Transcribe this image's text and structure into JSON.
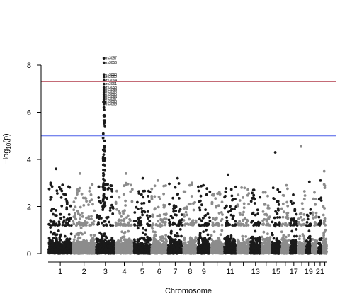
{
  "chart_data": {
    "type": "scatter",
    "title": "",
    "xlabel": "Chromosome",
    "ylabel": "-log10(p)",
    "ylim": [
      0,
      8.4
    ],
    "y_ticks": [
      0,
      2,
      4,
      6,
      8
    ],
    "x_tick_labels": [
      "1",
      "2",
      "3",
      "4",
      "5",
      "6",
      "7",
      "8",
      "9",
      "11",
      "13",
      "15",
      "17",
      "19",
      "21"
    ],
    "chromosomes": [
      "1",
      "2",
      "3",
      "4",
      "5",
      "6",
      "7",
      "8",
      "9",
      "10",
      "11",
      "12",
      "13",
      "14",
      "15",
      "16",
      "17",
      "18",
      "19",
      "20",
      "21",
      "22"
    ],
    "genome_wide_line": 7.3,
    "suggestive_line": 5.0,
    "genome_wide_color": "#b03a48",
    "suggestive_color": "#4a5ee8",
    "point_colors": [
      "#1a1a1a",
      "#8c8c8c"
    ],
    "peak_labels": [
      {
        "chr": "3",
        "label": "rs3057",
        "p": 8.3
      },
      {
        "chr": "3",
        "label": "rs3056",
        "p": 8.1
      },
      {
        "chr": "3",
        "label": "rs3060",
        "p": 7.6
      },
      {
        "chr": "3",
        "label": "rs3062",
        "p": 7.5
      },
      {
        "chr": "3",
        "label": "rs3064",
        "p": 7.35
      },
      {
        "chr": "3",
        "label": "rs3061",
        "p": 7.2
      },
      {
        "chr": "3",
        "label": "rs3058",
        "p": 7.05
      },
      {
        "chr": "3",
        "label": "rs3059",
        "p": 6.95
      },
      {
        "chr": "3",
        "label": "rs3063",
        "p": 6.85
      },
      {
        "chr": "3",
        "label": "rs3065",
        "p": 6.75
      },
      {
        "chr": "3",
        "label": "rs3066",
        "p": 6.65
      },
      {
        "chr": "3",
        "label": "rs3067",
        "p": 6.55
      },
      {
        "chr": "3",
        "label": "rs3068",
        "p": 6.45
      },
      {
        "chr": "3",
        "label": "rs3069",
        "p": 6.35
      }
    ],
    "chromosome_max": [
      3.6,
      3.4,
      8.3,
      3.4,
      3.2,
      3.1,
      3.2,
      3.0,
      2.9,
      2.6,
      3.35,
      2.8,
      2.7,
      2.6,
      4.3,
      2.9,
      2.5,
      4.55,
      3.05,
      2.6,
      3.1,
      3.5
    ]
  }
}
